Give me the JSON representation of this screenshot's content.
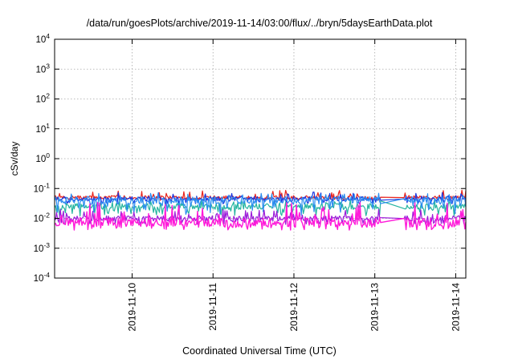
{
  "chart_data": {
    "type": "line",
    "title": "/data/run/goesPlots/archive/2019-11-14/03:00/flux/../bryn/5daysEarthData.plot",
    "xlabel": "Coordinated Universal Time (UTC)",
    "ylabel": "cSv/day",
    "x_range": [
      "2019-11-09 01:00",
      "2019-11-14 03:00"
    ],
    "x_ticks": [
      "2019-11-10",
      "2019-11-11",
      "2019-11-12",
      "2019-11-13",
      "2019-11-14"
    ],
    "y_scale": "log",
    "y_range": [
      0.0001,
      10000
    ],
    "y_tick_values": [
      0.0001,
      0.001,
      0.01,
      0.1,
      1,
      10,
      100,
      1000,
      10000
    ],
    "y_tick_labels": [
      {
        "base": "10",
        "exp": "-4"
      },
      {
        "base": "10",
        "exp": "-3"
      },
      {
        "base": "10",
        "exp": "-2"
      },
      {
        "base": "10",
        "exp": "-1"
      },
      {
        "base": "10",
        "exp": "0"
      },
      {
        "base": "10",
        "exp": "1"
      },
      {
        "base": "10",
        "exp": "2"
      },
      {
        "base": "10",
        "exp": "3"
      },
      {
        "base": "10",
        "exp": "4"
      }
    ],
    "grid": true,
    "data_gap": [
      "2019-11-13 02:00",
      "2019-11-13 08:30"
    ],
    "series": [
      {
        "color": "#e8231c",
        "typical": 0.05,
        "low": 0.04,
        "high": 0.09
      },
      {
        "color": "#1a35e0",
        "typical": 0.045,
        "low": 0.03,
        "high": 0.08
      },
      {
        "color": "#25b5a0",
        "typical": 0.025,
        "low": 0.012,
        "high": 0.045
      },
      {
        "color": "#2b8df0",
        "typical": 0.04,
        "low": 0.012,
        "high": 0.07
      },
      {
        "color": "#9b1bd9",
        "typical": 0.01,
        "low": 0.006,
        "high": 0.02
      },
      {
        "color": "#ff1ad9",
        "typical": 0.007,
        "low": 0.004,
        "high": 0.035
      }
    ]
  }
}
